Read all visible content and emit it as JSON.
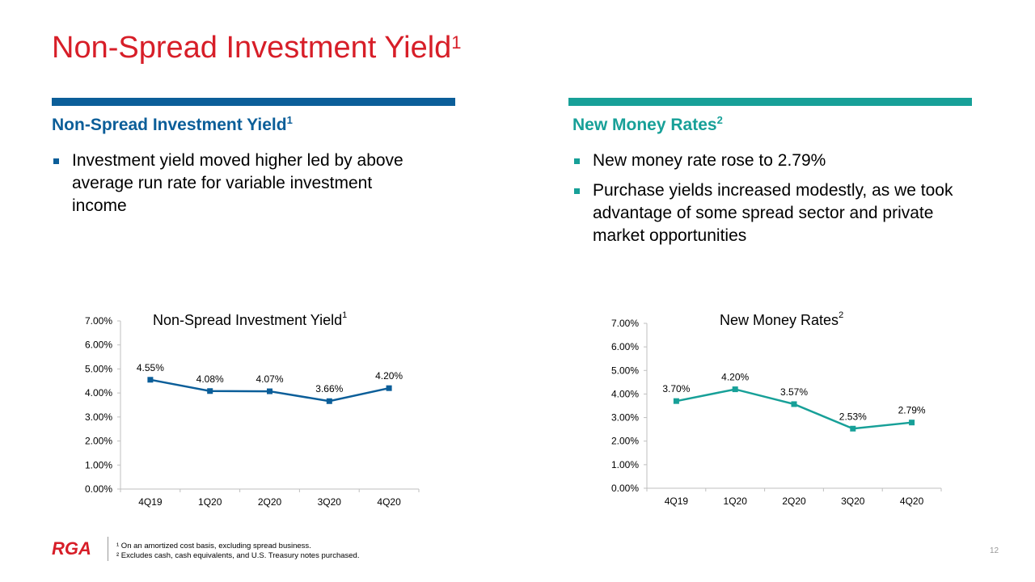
{
  "slide": {
    "title": "Non-Spread Investment Yield",
    "title_sup": "1",
    "page_number": "12"
  },
  "left": {
    "heading": "Non-Spread Investment Yield",
    "heading_sup": "1",
    "bullets": [
      "Investment yield moved higher led by above average run rate for variable investment income"
    ]
  },
  "right": {
    "heading": "New Money Rates",
    "heading_sup": "2",
    "bullets": [
      "New money rate rose to 2.79%",
      "Purchase yields increased modestly, as we took advantage of some spread sector and private market opportunities"
    ]
  },
  "footer": {
    "logo": "RGA",
    "footnote1": "¹ On an amortized cost basis, excluding spread business.",
    "footnote2": "² Excludes cash, cash equivalents, and U.S. Treasury notes purchased."
  },
  "colors": {
    "title_red": "#d71e28",
    "blue": "#0b5e99",
    "teal": "#17a098"
  },
  "chart_data": [
    {
      "type": "line",
      "title": "Non-Spread  Investment  Yield",
      "title_sup": "1",
      "categories": [
        "4Q19",
        "1Q20",
        "2Q20",
        "3Q20",
        "4Q20"
      ],
      "values": [
        4.55,
        4.08,
        4.07,
        3.66,
        4.2
      ],
      "data_labels": [
        "4.55%",
        "4.08%",
        "4.07%",
        "3.66%",
        "4.20%"
      ],
      "yticks": [
        "0.00%",
        "1.00%",
        "2.00%",
        "3.00%",
        "4.00%",
        "5.00%",
        "6.00%",
        "7.00%"
      ],
      "ylim": [
        0,
        7
      ],
      "grid": false,
      "color": "#0b5e99"
    },
    {
      "type": "line",
      "title": "New Money Rates",
      "title_sup": "2",
      "categories": [
        "4Q19",
        "1Q20",
        "2Q20",
        "3Q20",
        "4Q20"
      ],
      "values": [
        3.7,
        4.2,
        3.57,
        2.53,
        2.79
      ],
      "data_labels": [
        "3.70%",
        "4.20%",
        "3.57%",
        "2.53%",
        "2.79%"
      ],
      "yticks": [
        "0.00%",
        "1.00%",
        "2.00%",
        "3.00%",
        "4.00%",
        "5.00%",
        "6.00%",
        "7.00%"
      ],
      "ylim": [
        0,
        7
      ],
      "grid": false,
      "color": "#17a098"
    }
  ]
}
